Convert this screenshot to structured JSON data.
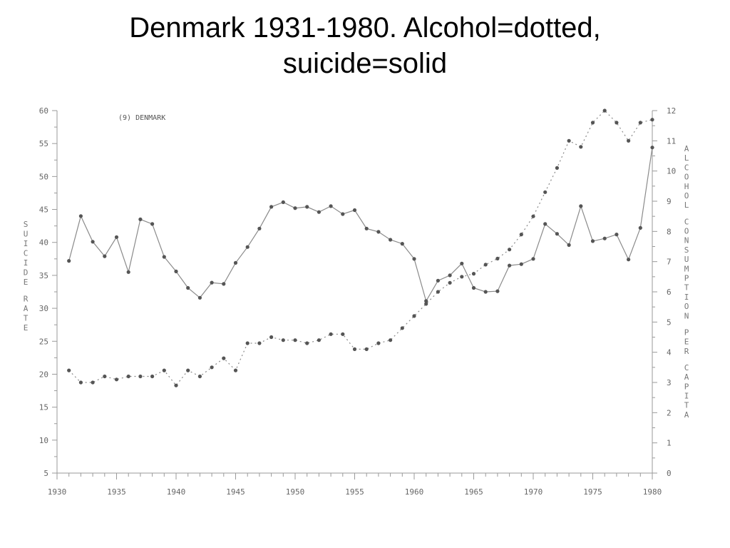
{
  "slide": {
    "title_line1": "Denmark 1931-1980. Alcohol=dotted,",
    "title_line2": "suicide=solid"
  },
  "chart_data": {
    "type": "line",
    "inner_label": "(9) DENMARK",
    "ylabel_left": "SUICIDE RATE",
    "ylabel_right": "ALCOHOL CONSUMPTION PER CAPITA",
    "xlim": [
      1930,
      1980
    ],
    "ylim_left": [
      5,
      60
    ],
    "ylim_right": [
      0,
      12
    ],
    "x_ticks": [
      "1930",
      "1935",
      "1940",
      "1945",
      "1950",
      "1955",
      "1960",
      "1965",
      "1970",
      "1975",
      "1980"
    ],
    "y_left_ticks": [
      "5",
      "10",
      "15",
      "20",
      "25",
      "30",
      "35",
      "40",
      "45",
      "50",
      "55",
      "60"
    ],
    "y_right_ticks": [
      "0",
      "1",
      "2",
      "3",
      "4",
      "5",
      "6",
      "7",
      "8",
      "9",
      "10",
      "11",
      "12"
    ],
    "series": [
      {
        "name": "suicide",
        "style": "solid",
        "axis": "left",
        "x": [
          1931,
          1932,
          1933,
          1934,
          1935,
          1936,
          1937,
          1938,
          1939,
          1940,
          1941,
          1942,
          1943,
          1944,
          1945,
          1946,
          1947,
          1948,
          1949,
          1950,
          1951,
          1952,
          1953,
          1954,
          1955,
          1956,
          1957,
          1958,
          1959,
          1960,
          1961,
          1962,
          1963,
          1964,
          1965,
          1966,
          1967,
          1968,
          1969,
          1970,
          1971,
          1972,
          1973,
          1974,
          1975,
          1976,
          1977,
          1978,
          1979,
          1980
        ],
        "values": [
          37.2,
          44.0,
          40.1,
          37.9,
          40.8,
          35.5,
          43.5,
          42.8,
          37.8,
          35.6,
          33.1,
          31.6,
          33.9,
          33.7,
          36.9,
          39.3,
          42.1,
          45.4,
          46.1,
          45.2,
          45.4,
          44.6,
          45.5,
          44.3,
          44.9,
          42.1,
          41.6,
          40.4,
          39.8,
          37.5,
          31.1,
          34.2,
          35.0,
          36.8,
          33.1,
          32.5,
          32.6,
          36.5,
          36.7,
          37.5,
          42.8,
          41.3,
          39.6,
          45.5,
          40.2,
          40.6,
          41.2,
          37.4,
          42.2,
          54.4
        ]
      },
      {
        "name": "alcohol",
        "style": "dotted",
        "axis": "right",
        "x": [
          1931,
          1932,
          1933,
          1934,
          1935,
          1936,
          1937,
          1938,
          1939,
          1940,
          1941,
          1942,
          1943,
          1944,
          1945,
          1946,
          1947,
          1948,
          1949,
          1950,
          1951,
          1952,
          1953,
          1954,
          1955,
          1956,
          1957,
          1958,
          1959,
          1960,
          1961,
          1962,
          1963,
          1964,
          1965,
          1966,
          1967,
          1968,
          1969,
          1970,
          1971,
          1972,
          1973,
          1974,
          1975,
          1976,
          1977,
          1978,
          1979,
          1980
        ],
        "values": [
          3.4,
          3.0,
          3.0,
          3.2,
          3.1,
          3.2,
          3.2,
          3.2,
          3.4,
          2.9,
          3.4,
          3.2,
          3.5,
          3.8,
          3.4,
          4.3,
          4.3,
          4.5,
          4.4,
          4.4,
          4.3,
          4.4,
          4.6,
          4.6,
          4.1,
          4.1,
          4.3,
          4.4,
          4.8,
          5.2,
          5.6,
          6.0,
          6.3,
          6.5,
          6.6,
          6.9,
          7.1,
          7.4,
          7.9,
          8.5,
          9.3,
          10.1,
          11.0,
          10.8,
          11.6,
          12.0,
          11.6,
          11.0,
          11.6,
          11.7
        ]
      }
    ],
    "grid": false,
    "legend": "none"
  }
}
